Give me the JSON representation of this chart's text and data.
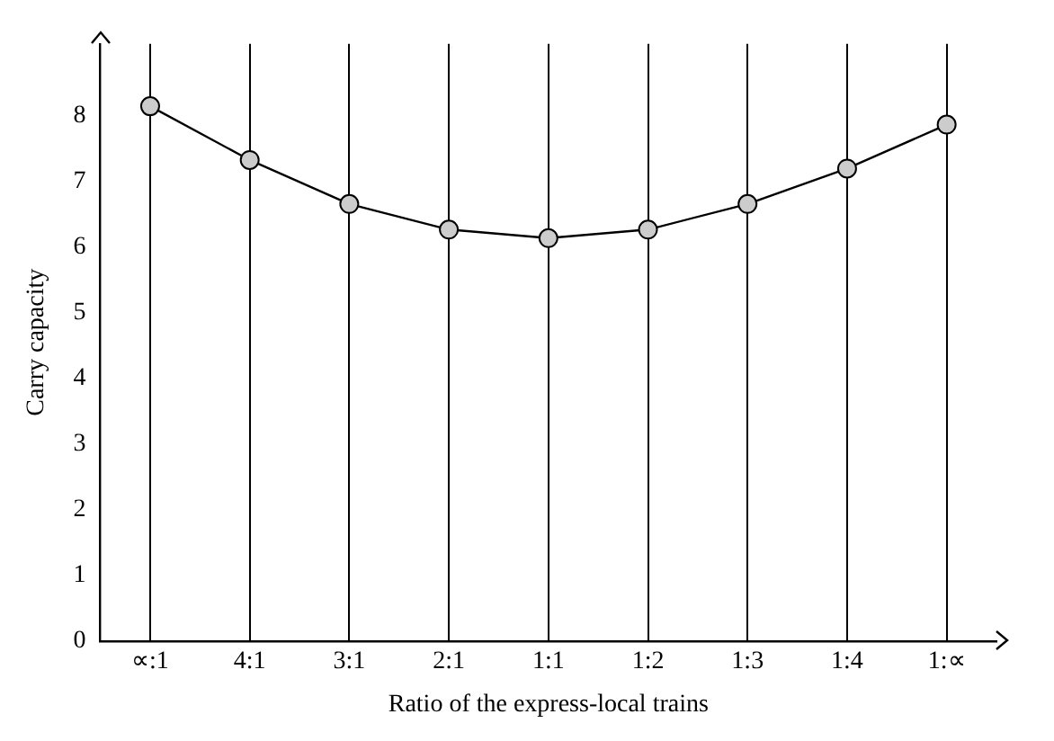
{
  "chart_data": {
    "type": "line",
    "xlabel": "Ratio of the express-local trains",
    "ylabel": "Carry capacity",
    "categories": [
      "∝:1",
      "4:1",
      "3:1",
      "2:1",
      "1:1",
      "1:2",
      "1:3",
      "1:4",
      "1:∝"
    ],
    "series": [
      {
        "color": "#000000",
        "values": [
          8.15,
          7.33,
          6.66,
          6.27,
          6.14,
          6.27,
          6.66,
          7.2,
          7.87
        ]
      }
    ],
    "ylim": [
      0,
      9.1
    ],
    "yticks": [
      0,
      1,
      2,
      3,
      4,
      5,
      6,
      7,
      8
    ],
    "grid": "x",
    "marker": "circle",
    "line_style": "solid",
    "legend": false
  }
}
